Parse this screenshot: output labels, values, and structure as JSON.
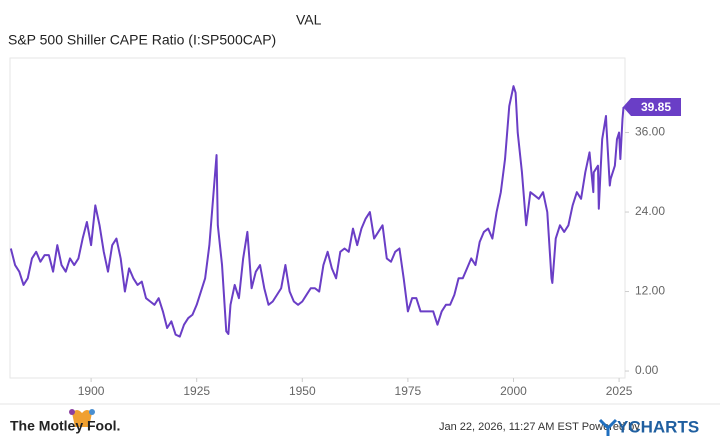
{
  "chart_data": {
    "type": "line",
    "column_header": "VAL",
    "series": [
      {
        "name": "S&P 500 Shiller CAPE Ratio (I:SP500CAP)",
        "color": "#6a3ec6",
        "x": [
          1881,
          1882,
          1883,
          1884,
          1885,
          1886,
          1887,
          1888,
          1889,
          1890,
          1891,
          1892,
          1893,
          1894,
          1895,
          1896,
          1897,
          1898,
          1899,
          1900,
          1901,
          1902,
          1903,
          1904,
          1905,
          1906,
          1907,
          1908,
          1909,
          1910,
          1911,
          1912,
          1913,
          1914,
          1915,
          1916,
          1917,
          1918,
          1919,
          1920,
          1921,
          1922,
          1923,
          1924,
          1925,
          1926,
          1927,
          1928,
          1929,
          1929.7,
          1930,
          1931,
          1932,
          1932.5,
          1933,
          1934,
          1935,
          1936,
          1937,
          1938,
          1939,
          1940,
          1941,
          1942,
          1943,
          1944,
          1945,
          1946,
          1947,
          1948,
          1949,
          1950,
          1951,
          1952,
          1953,
          1954,
          1955,
          1956,
          1957,
          1958,
          1959,
          1960,
          1961,
          1962,
          1963,
          1964,
          1965,
          1966,
          1967,
          1968,
          1969,
          1970,
          1971,
          1972,
          1973,
          1974,
          1975,
          1976,
          1977,
          1978,
          1979,
          1980,
          1981,
          1982,
          1983,
          1984,
          1985,
          1986,
          1987,
          1988,
          1989,
          1990,
          1991,
          1992,
          1993,
          1994,
          1995,
          1996,
          1997,
          1998,
          1999,
          2000,
          2000.5,
          2001,
          2002,
          2003,
          2004,
          2005,
          2006,
          2007,
          2008,
          2009,
          2009.2,
          2010,
          2011,
          2012,
          2013,
          2014,
          2015,
          2016,
          2017,
          2018,
          2018.9,
          2019,
          2020,
          2020.2,
          2020.6,
          2021,
          2021.9,
          2022,
          2022.8,
          2023,
          2024,
          2024.5,
          2025,
          2025.3,
          2025.8,
          2026.05
        ],
        "values": [
          18.5,
          16,
          15,
          13,
          14,
          17,
          18,
          16.5,
          17.5,
          17.5,
          15,
          19,
          16,
          15,
          17,
          16,
          17,
          20,
          22.5,
          19,
          25,
          22,
          18,
          15,
          19,
          20,
          17,
          12,
          15.5,
          14,
          13,
          13.5,
          11,
          10.5,
          10,
          11,
          9,
          6.5,
          7.5,
          5.5,
          5.2,
          7,
          8,
          8.5,
          10,
          12,
          14,
          19,
          27,
          32.6,
          22,
          16,
          6,
          5.6,
          10,
          13,
          11,
          17,
          21,
          12.5,
          15,
          16,
          12.5,
          10,
          10.5,
          11.5,
          12.5,
          16,
          12,
          10.5,
          10,
          10.5,
          11.5,
          12.5,
          12.5,
          12,
          16,
          18,
          15.5,
          14,
          18,
          18.5,
          18,
          21.5,
          19,
          21.5,
          23,
          24,
          20,
          21,
          22,
          17,
          16.5,
          18,
          18.5,
          14,
          9,
          11,
          11,
          9,
          9,
          9,
          9,
          7,
          9,
          10,
          10,
          11.5,
          14,
          14,
          15.5,
          17,
          16,
          19.5,
          21,
          21.5,
          20,
          24,
          27,
          32,
          40,
          43,
          42,
          36,
          30,
          22,
          27,
          26.5,
          26,
          27,
          24,
          14,
          13.3,
          20,
          22,
          21,
          22,
          25,
          27,
          26,
          30,
          33,
          27,
          30,
          31,
          24.5,
          30,
          35,
          38.5,
          37,
          28,
          29,
          31,
          35,
          36,
          32,
          38,
          39.85
        ]
      }
    ],
    "xlim": [
      1880.8,
      2026.4
    ],
    "xticks": [
      1900,
      1925,
      1950,
      1975,
      2000,
      2025
    ],
    "ylim": [
      -1.05,
      47.25
    ],
    "yticks": [
      {
        "value": 0,
        "label": "0.00"
      },
      {
        "value": 12,
        "label": "12.00"
      },
      {
        "value": 24,
        "label": "24.00"
      },
      {
        "value": 36,
        "label": "36.00"
      }
    ],
    "grid": false
  },
  "footer": {
    "brand": "The Motley Fool.",
    "timestamp": "Jan 22, 2026, 11:27 AM EST Powered by",
    "provider": "YCHARTS"
  }
}
